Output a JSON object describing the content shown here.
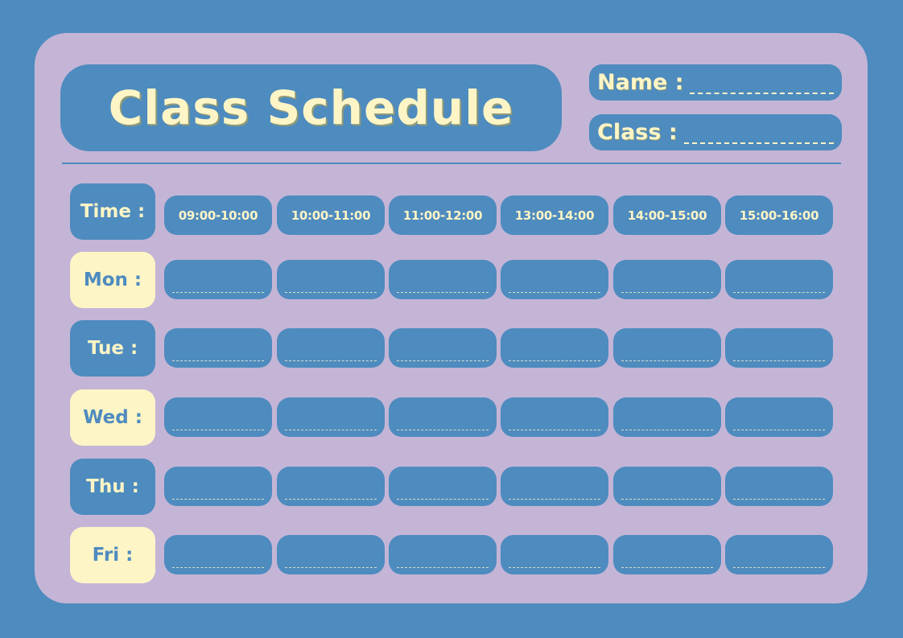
{
  "header": {
    "title": "Class Schedule",
    "name_label": "Name :",
    "class_label": "Class :"
  },
  "colors": {
    "background": "#4e8bbf",
    "card": "#c4b5d6",
    "accent": "#fdf5c6"
  },
  "schedule": {
    "time_label": "Time :",
    "times": [
      "09:00-10:00",
      "10:00-11:00",
      "11:00-12:00",
      "13:00-14:00",
      "14:00-15:00",
      "15:00-16:00"
    ],
    "days": [
      "Mon :",
      "Tue :",
      "Wed :",
      "Thu :",
      "Fri :"
    ]
  }
}
